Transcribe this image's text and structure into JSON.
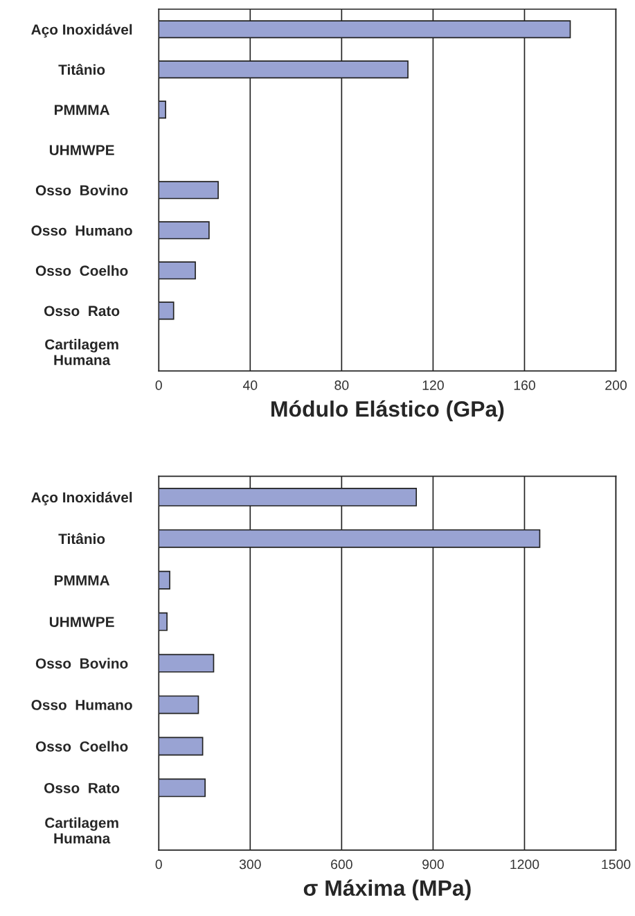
{
  "chart_data": [
    {
      "type": "bar",
      "orientation": "horizontal",
      "categories": [
        "Aço Inoxidável",
        "Titânio",
        "PMMMA",
        "UHMWPE",
        "Osso  Bovino",
        "Osso  Humano",
        "Osso  Coelho",
        "Osso  Rato",
        "Cartilagem\nHumana"
      ],
      "values": [
        180,
        109,
        3,
        null,
        26,
        22,
        16,
        6.5,
        null
      ],
      "color": "#99a3d3",
      "xlim": [
        0,
        200
      ],
      "xticks": [
        0,
        40,
        80,
        120,
        160,
        200
      ],
      "grid": "x",
      "xlabel": "Módulo Elástico (GPa)"
    },
    {
      "type": "bar",
      "orientation": "horizontal",
      "categories": [
        "Aço Inoxidável",
        "Titânio",
        "PMMMA",
        "UHMWPE",
        "Osso  Bovino",
        "Osso  Humano",
        "Osso  Coelho",
        "Osso  Rato",
        "Cartilagem\nHumana"
      ],
      "values": [
        845,
        1250,
        36,
        27,
        180,
        130,
        144,
        152,
        null
      ],
      "color": "#99a3d3",
      "xlim": [
        0,
        1500
      ],
      "xticks": [
        0,
        300,
        600,
        900,
        1200,
        1500
      ],
      "grid": "x",
      "xlabel": "σ Máxima (MPa)"
    }
  ]
}
